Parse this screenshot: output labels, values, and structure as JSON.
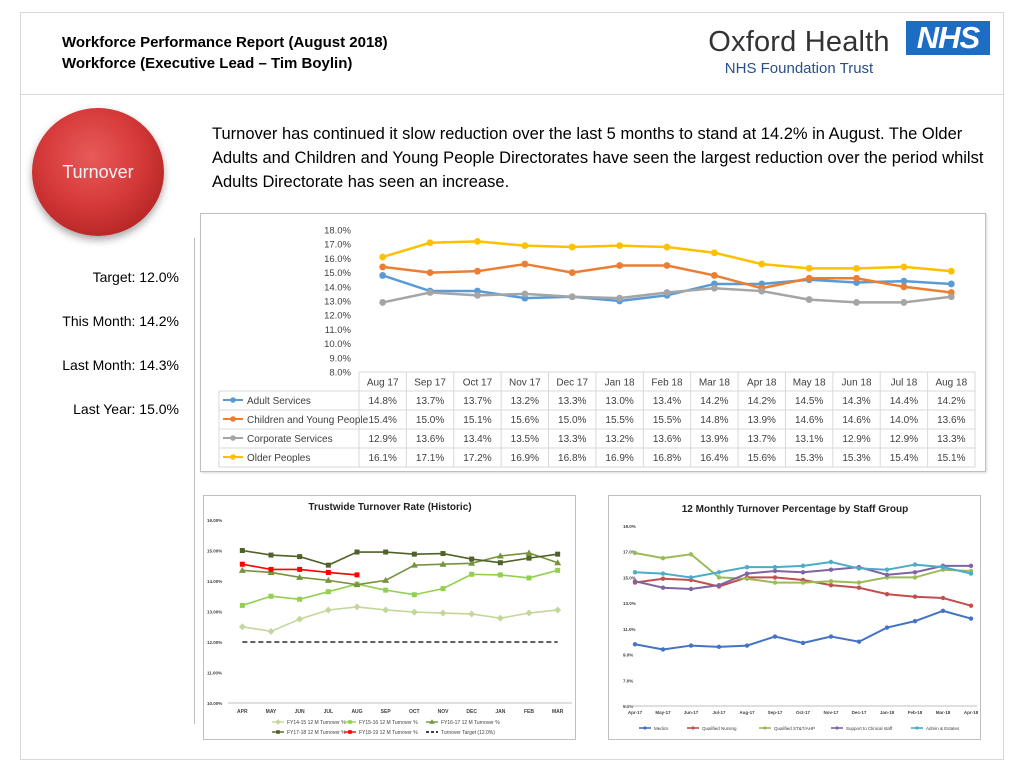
{
  "header": {
    "title_line1": "Workforce Performance Report (August 2018)",
    "title_line2": "Workforce (Executive Lead – Tim Boylin)",
    "logo_main": "Oxford Health",
    "logo_sub": "NHS Foundation Trust",
    "nhs_mark": "NHS"
  },
  "metric_label": "Turnover",
  "summary_text": "Turnover has continued it slow reduction over the last 5 months to stand at 14.2% in August. The Older Adults and Children and Young People Directorates have seen the largest reduction over the period whilst Adults Directorate has seen an increase.",
  "kpis": {
    "target": "Target: 12.0%",
    "this_month": "This Month: 14.2%",
    "last_month": "Last Month: 14.3%",
    "last_year": "Last Year: 15.0%"
  },
  "colors": {
    "ball": "#d63a3a",
    "nhs_blue": "#1c6dc3"
  },
  "chart_data": [
    {
      "type": "line",
      "title": "",
      "categories": [
        "Aug 17",
        "Sep 17",
        "Oct 17",
        "Nov 17",
        "Dec 17",
        "Jan 18",
        "Feb 18",
        "Mar 18",
        "Apr 18",
        "May 18",
        "Jun 18",
        "Jul 18",
        "Aug 18"
      ],
      "yticks": [
        "8.0%",
        "9.0%",
        "10.0%",
        "11.0%",
        "12.0%",
        "13.0%",
        "14.0%",
        "15.0%",
        "16.0%",
        "17.0%",
        "18.0%"
      ],
      "ylim": [
        8,
        18
      ],
      "data_table": true,
      "series": [
        {
          "name": "Adult Services",
          "color": "#5b9bd5",
          "values": [
            14.8,
            13.7,
            13.7,
            13.2,
            13.3,
            13.0,
            13.4,
            14.2,
            14.2,
            14.5,
            14.3,
            14.4,
            14.2
          ],
          "labels": [
            "14.8%",
            "13.7%",
            "13.7%",
            "13.2%",
            "13.3%",
            "13.0%",
            "13.4%",
            "14.2%",
            "14.2%",
            "14.5%",
            "14.3%",
            "14.4%",
            "14.2%"
          ]
        },
        {
          "name": "Children and Young People",
          "color": "#ed7d31",
          "values": [
            15.4,
            15.0,
            15.1,
            15.6,
            15.0,
            15.5,
            15.5,
            14.8,
            13.9,
            14.6,
            14.6,
            14.0,
            13.6
          ],
          "labels": [
            "15.4%",
            "15.0%",
            "15.1%",
            "15.6%",
            "15.0%",
            "15.5%",
            "15.5%",
            "14.8%",
            "13.9%",
            "14.6%",
            "14.6%",
            "14.0%",
            "13.6%"
          ]
        },
        {
          "name": "Corporate Services",
          "color": "#a5a5a5",
          "values": [
            12.9,
            13.6,
            13.4,
            13.5,
            13.3,
            13.2,
            13.6,
            13.9,
            13.7,
            13.1,
            12.9,
            12.9,
            13.3
          ],
          "labels": [
            "12.9%",
            "13.6%",
            "13.4%",
            "13.5%",
            "13.3%",
            "13.2%",
            "13.6%",
            "13.9%",
            "13.7%",
            "13.1%",
            "12.9%",
            "12.9%",
            "13.3%"
          ]
        },
        {
          "name": "Older Peoples",
          "color": "#ffc000",
          "values": [
            16.1,
            17.1,
            17.2,
            16.9,
            16.8,
            16.9,
            16.8,
            16.4,
            15.6,
            15.3,
            15.3,
            15.4,
            15.1
          ],
          "labels": [
            "16.1%",
            "17.1%",
            "17.2%",
            "16.9%",
            "16.8%",
            "16.9%",
            "16.8%",
            "16.4%",
            "15.6%",
            "15.3%",
            "15.3%",
            "15.4%",
            "15.1%"
          ]
        }
      ]
    },
    {
      "type": "line",
      "title": "Trustwide Turnover Rate (Historic)",
      "categories": [
        "APR",
        "MAY",
        "JUN",
        "JUL",
        "AUG",
        "SEP",
        "OCT",
        "NOV",
        "DEC",
        "JAN",
        "FEB",
        "MAR"
      ],
      "yticks": [
        "10.00%",
        "11.00%",
        "12.00%",
        "13.00%",
        "14.00%",
        "15.00%",
        "16.00%"
      ],
      "ylim": [
        10,
        16
      ],
      "series": [
        {
          "name": "FY14-15 12 M Turnover %",
          "color": "#c4d79b",
          "marker": "diamond",
          "values": [
            12.5,
            12.35,
            12.75,
            13.05,
            13.15,
            13.05,
            12.98,
            12.95,
            12.92,
            12.78,
            12.95,
            13.05
          ]
        },
        {
          "name": "FY15-16 12 M Turnover %",
          "color": "#92d050",
          "marker": "square",
          "values": [
            13.2,
            13.5,
            13.4,
            13.65,
            13.9,
            13.7,
            13.55,
            13.75,
            14.22,
            14.2,
            14.1,
            14.35
          ]
        },
        {
          "name": "FY16-17 12 M Turnover %",
          "color": "#77933c",
          "marker": "triangle",
          "values": [
            14.35,
            14.28,
            14.12,
            14.02,
            13.88,
            14.02,
            14.52,
            14.55,
            14.58,
            14.82,
            14.92,
            14.6
          ]
        },
        {
          "name": "FY17-18 12 M Turnover %",
          "color": "#4f6228",
          "marker": "square",
          "values": [
            15.0,
            14.85,
            14.8,
            14.52,
            14.95,
            14.95,
            14.88,
            14.9,
            14.72,
            14.6,
            14.75,
            14.88
          ]
        },
        {
          "name": "FY18-19 12 M Turnover %",
          "color": "#ff0000",
          "marker": "square",
          "values": [
            14.55,
            14.38,
            14.38,
            14.28,
            14.2,
            null,
            null,
            null,
            null,
            null,
            null,
            null
          ]
        },
        {
          "name": "Turnover Target (12.0%)",
          "color": "#000000",
          "marker": "none",
          "dashed": true,
          "values": [
            12,
            12,
            12,
            12,
            12,
            12,
            12,
            12,
            12,
            12,
            12,
            12
          ]
        }
      ]
    },
    {
      "type": "line",
      "title": "12 Monthly Turnover Percentage  by Staff Group",
      "categories": [
        "Apr-17",
        "May-17",
        "Jun-17",
        "Jul-17",
        "Aug-17",
        "Sep-17",
        "Oct-17",
        "Nov-17",
        "Dec-17",
        "Jan-18",
        "Feb-18",
        "Mar-18",
        "Apr-18"
      ],
      "yticks": [
        "5.0%",
        "7.0%",
        "9.0%",
        "11.0%",
        "13.0%",
        "15.0%",
        "17.0%",
        "19.0%"
      ],
      "ylim": [
        5,
        19
      ],
      "series": [
        {
          "name": "Medics",
          "color": "#4472c4",
          "values": [
            9.8,
            9.4,
            9.7,
            9.6,
            9.7,
            10.4,
            9.9,
            10.4,
            10.0,
            11.1,
            11.6,
            12.4,
            11.8
          ]
        },
        {
          "name": "Qualified Nursing",
          "color": "#c0504d",
          "values": [
            14.6,
            14.9,
            14.8,
            14.3,
            15.0,
            15.0,
            14.8,
            14.4,
            14.2,
            13.7,
            13.5,
            13.4,
            12.8
          ]
        },
        {
          "name": "Qualified ST&T/AHP",
          "color": "#9bbb59",
          "values": [
            16.9,
            16.5,
            16.8,
            15.0,
            14.9,
            14.6,
            14.6,
            14.7,
            14.6,
            15.0,
            15.0,
            15.6,
            15.5
          ]
        },
        {
          "name": "Support to Clinical staff",
          "color": "#8064a2",
          "values": [
            14.7,
            14.2,
            14.1,
            14.4,
            15.3,
            15.5,
            15.4,
            15.6,
            15.8,
            15.2,
            15.4,
            15.9,
            15.9
          ]
        },
        {
          "name": "Admin & Estates",
          "color": "#4bacc6",
          "values": [
            15.4,
            15.3,
            15.0,
            15.4,
            15.8,
            15.8,
            15.9,
            16.2,
            15.7,
            15.6,
            16.0,
            15.8,
            15.3
          ]
        }
      ]
    }
  ]
}
